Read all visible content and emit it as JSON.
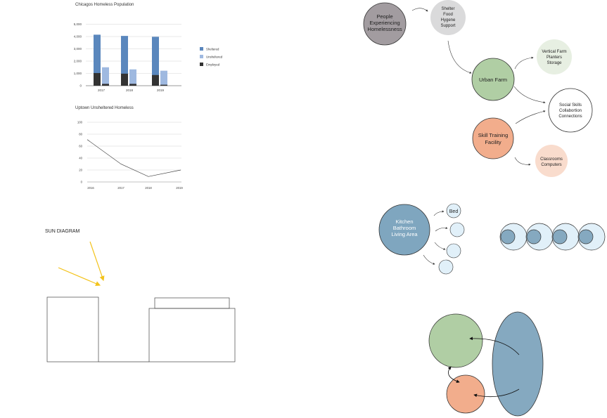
{
  "charts": {
    "bar": {
      "title": "Chicagos Homeless Population",
      "categories": [
        "2017",
        "2018",
        "2019"
      ],
      "yticks": [
        "5,000",
        "4,000",
        "3,000",
        "2,000",
        "1,000",
        "0"
      ],
      "legend": [
        "Sheltered",
        "Unsheltered",
        "Employed"
      ]
    },
    "line": {
      "title": "Uptown Unsheltered Homeless",
      "xticks": [
        "2016",
        "2017",
        "2018",
        "2019"
      ],
      "yticks": [
        "100",
        "80",
        "60",
        "40",
        "20",
        "0"
      ]
    }
  },
  "chart_data": [
    {
      "type": "bar",
      "title": "Chicagos Homeless Population",
      "categories": [
        "2017",
        "2018",
        "2019"
      ],
      "series": [
        {
          "name": "Sheltered",
          "values": [
            4150,
            4050,
            3980
          ],
          "color": "#5a87bd"
        },
        {
          "name": "Unsheltered",
          "values": [
            1500,
            1330,
            1220
          ],
          "color": "#9fb9e0"
        },
        {
          "name": "Employed",
          "values": [
            1030,
            980,
            870
          ],
          "color": "#333333"
        },
        {
          "name": "Employed",
          "values": [
            150,
            150,
            80
          ],
          "color": "#333333"
        }
      ],
      "ylim": [
        0,
        5000
      ],
      "grid": true,
      "legend": "right"
    },
    {
      "type": "line",
      "title": "Uptown Unsheltered Homeless",
      "x": [
        "2016",
        "2017",
        "2018",
        "2019"
      ],
      "values": [
        71,
        30,
        9,
        20
      ],
      "ylim": [
        0,
        100
      ],
      "grid": true
    }
  ],
  "diagram_top": {
    "people": [
      "People",
      "Experiencing",
      "Homelessness"
    ],
    "needs": [
      "Shelter",
      "Food",
      "Hygene",
      "Support"
    ],
    "urban_farm": "Urban Farm",
    "vertical": [
      "Vertical Farm",
      "Planters",
      "Storage"
    ],
    "social": [
      "Social Skills",
      "Collabortion",
      "Connections"
    ],
    "skill": [
      "Skill Training",
      "Facility"
    ],
    "classrooms": [
      "Classrooms",
      "Computers"
    ]
  },
  "diagram_mid": {
    "kitchen": [
      "Kitchen",
      "Bathroom",
      "Living Area"
    ],
    "bed": "Bed"
  },
  "sun": {
    "title": "SUN DIAGRAM"
  },
  "colors": {
    "people": "#a29ca0",
    "needs": "#dadadb",
    "farm": "#b0cea4",
    "vertical": "#e7efe2",
    "skill": "#f2ad8c",
    "classrooms": "#f9dccd",
    "kitchen": "#7fa6bf",
    "bubble": "#e1f0f9",
    "dark_blue": "#85a9c0",
    "sun": "#f3c31c"
  }
}
